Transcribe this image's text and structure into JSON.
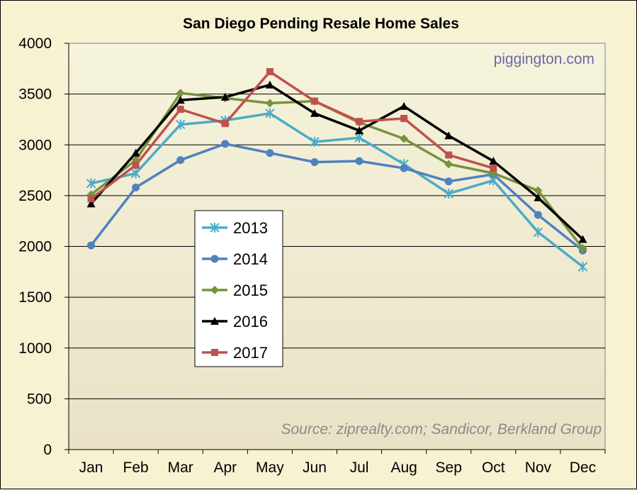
{
  "chart_data": {
    "type": "line",
    "title": "San Diego Pending Resale Home Sales",
    "watermark": "piggington.com",
    "source": "Source: ziprealty.com; Sandicor, Berkland Group",
    "xlabel": "",
    "ylabel": "",
    "categories": [
      "Jan",
      "Feb",
      "Mar",
      "Apr",
      "May",
      "Jun",
      "Jul",
      "Aug",
      "Sep",
      "Oct",
      "Nov",
      "Dec"
    ],
    "ylim": [
      0,
      4000
    ],
    "yticks": [
      0,
      500,
      1000,
      1500,
      2000,
      2500,
      3000,
      3500,
      4000
    ],
    "grid": "horizontal",
    "legend_position": "center-left",
    "series": [
      {
        "name": "2013",
        "color": "#4aacc6",
        "marker": "star",
        "values": [
          2620,
          2720,
          3200,
          3240,
          3310,
          3030,
          3070,
          2810,
          2520,
          2650,
          2140,
          1800
        ]
      },
      {
        "name": "2014",
        "color": "#4f81bd",
        "marker": "circle",
        "values": [
          2010,
          2580,
          2850,
          3010,
          2920,
          2830,
          2840,
          2770,
          2640,
          2710,
          2310,
          1960
        ]
      },
      {
        "name": "2015",
        "color": "#77933c",
        "marker": "diamond",
        "values": [
          2510,
          2850,
          3510,
          3460,
          3410,
          3430,
          3220,
          3060,
          2810,
          2720,
          2550,
          1980
        ]
      },
      {
        "name": "2016",
        "color": "#000000",
        "marker": "triangle",
        "values": [
          2420,
          2920,
          3440,
          3470,
          3590,
          3310,
          3140,
          3380,
          3090,
          2840,
          2480,
          2070
        ]
      },
      {
        "name": "2017",
        "color": "#c0504d",
        "marker": "square",
        "values": [
          2470,
          2800,
          3350,
          3210,
          3720,
          3430,
          3230,
          3260,
          2900,
          2770,
          null,
          null
        ]
      }
    ]
  }
}
